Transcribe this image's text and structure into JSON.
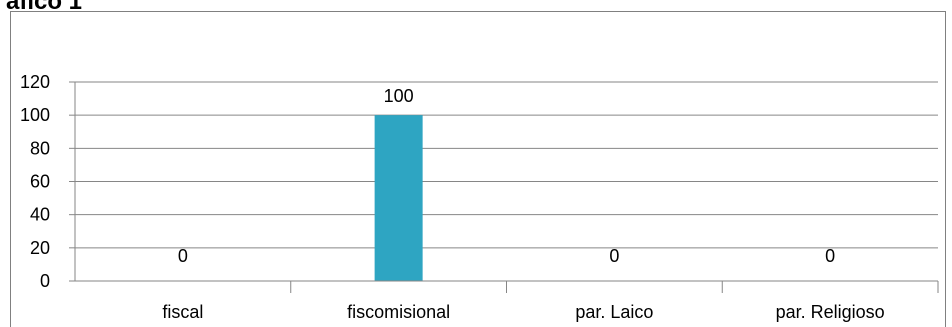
{
  "header": {
    "visible_title_fragment": "afico 1"
  },
  "chart_data": {
    "type": "bar",
    "categories": [
      "fiscal",
      "fiscomisional",
      "par. Laico",
      "par. Religioso"
    ],
    "values": [
      0,
      100,
      0,
      0
    ],
    "data_labels": [
      "0",
      "100",
      "0",
      "0"
    ],
    "title": "",
    "xlabel": "",
    "ylabel": "",
    "ylim": [
      0,
      120
    ],
    "yticks": [
      0,
      20,
      40,
      60,
      80,
      100,
      120
    ],
    "grid": true,
    "legend": "none",
    "colors": {
      "bar": "#2EA5C2",
      "grid": "#868686",
      "axis": "#868686"
    }
  }
}
